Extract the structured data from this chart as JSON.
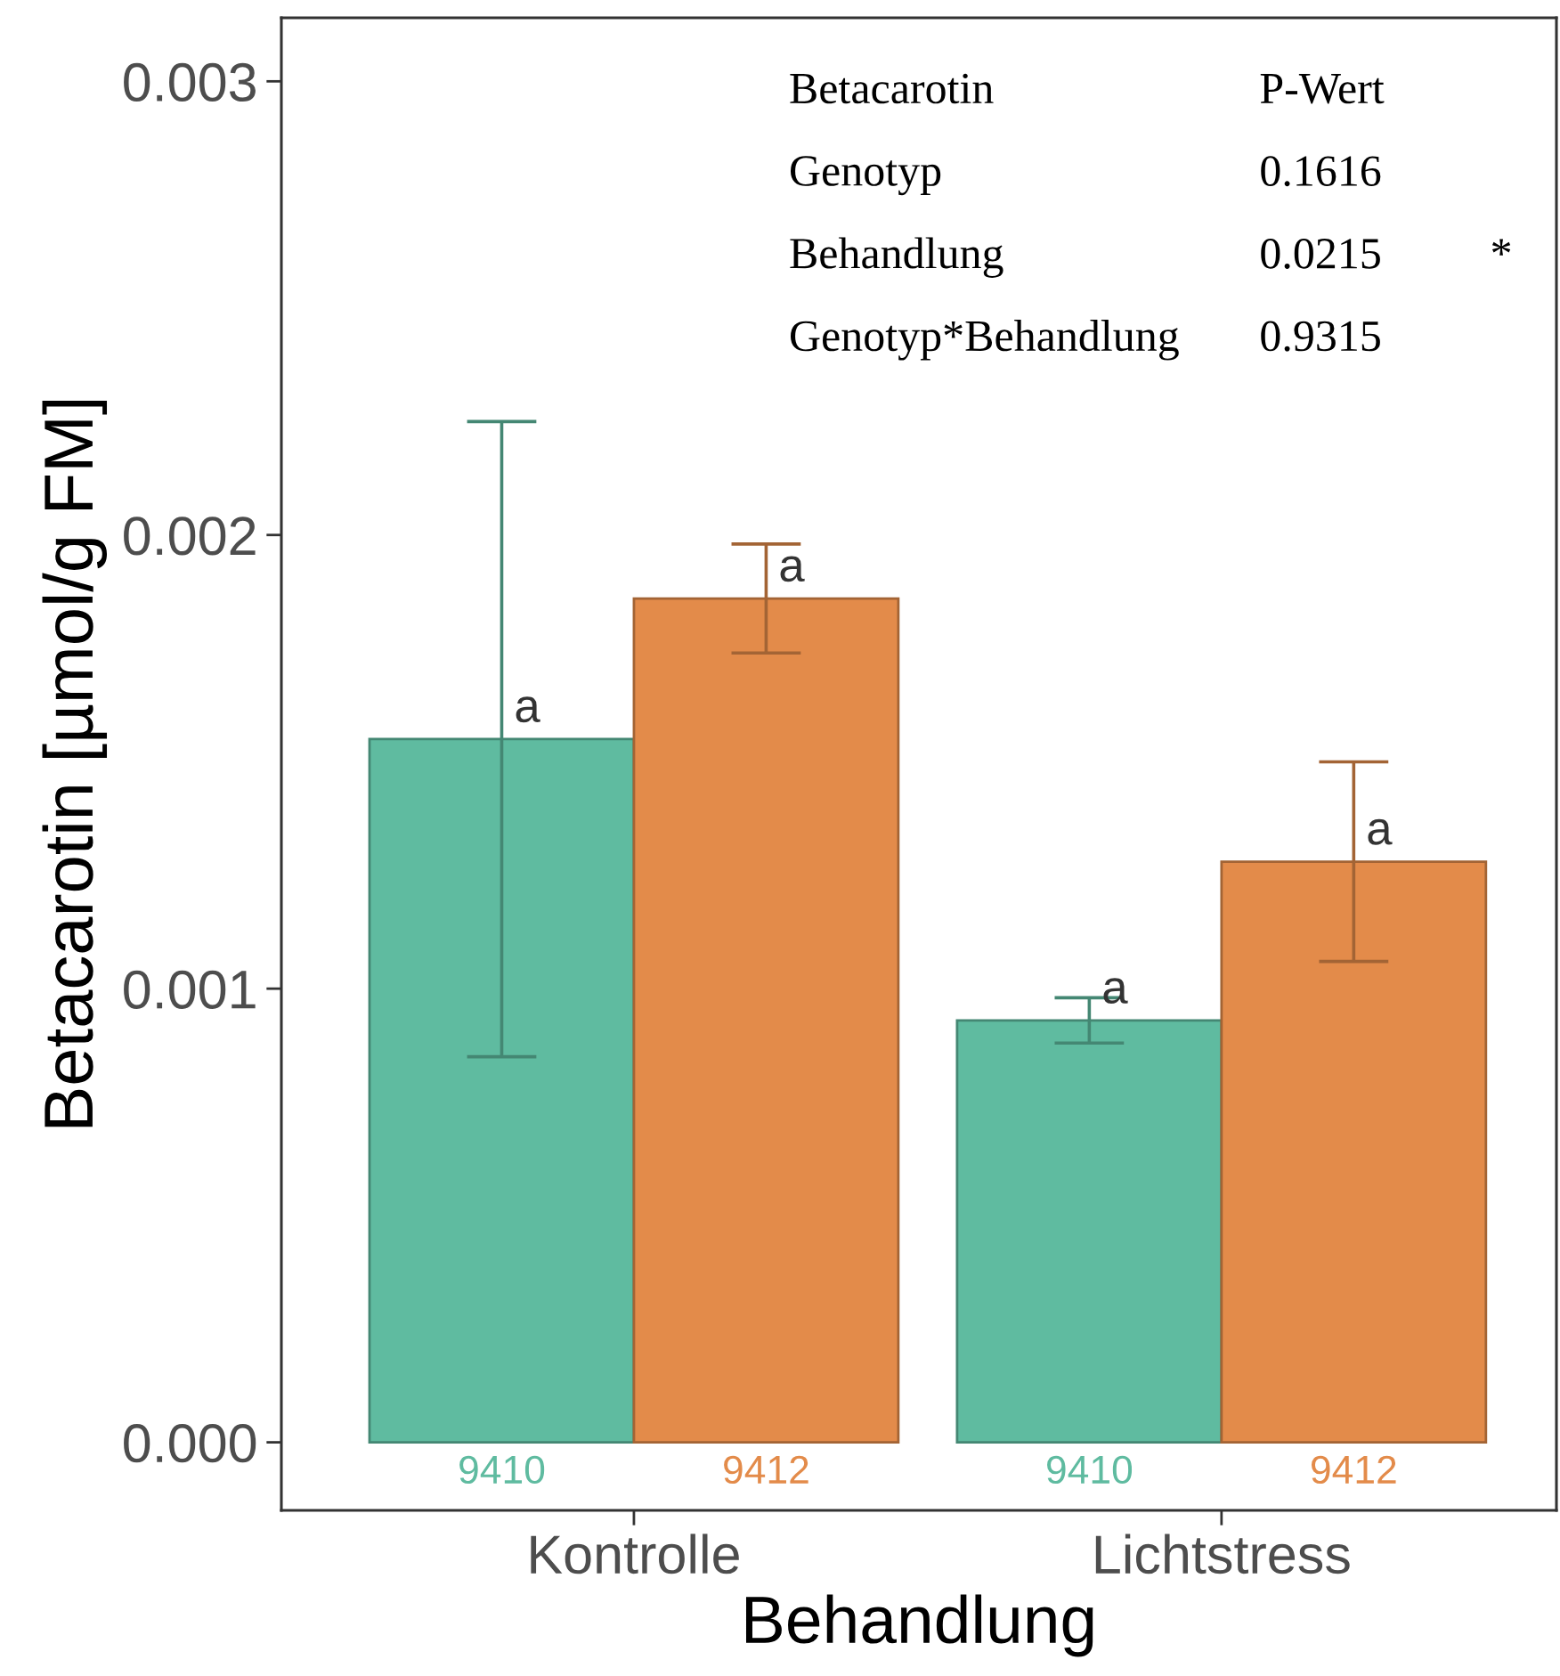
{
  "chart_data": {
    "type": "bar",
    "xlabel": "Behandlung",
    "ylabel": "Betacarotin [µmol/g FM]",
    "categories": [
      "Kontrolle",
      "Lichtstress"
    ],
    "series": [
      {
        "name": "9410",
        "color": "#5fbba0",
        "values": [
          0.00155,
          0.00093
        ],
        "errors": [
          0.0007,
          5e-05
        ],
        "value_labels": [
          "a",
          "a"
        ]
      },
      {
        "name": "9412",
        "color": "#e38b4a",
        "values": [
          0.00186,
          0.00128
        ],
        "errors": [
          0.00012,
          0.00022
        ],
        "value_labels": [
          "a",
          "a"
        ]
      }
    ],
    "ylim": [
      -0.00015,
      0.00314
    ],
    "yticks": [
      {
        "value": 0,
        "label": "0.000"
      },
      0.001,
      0.002,
      0.003
    ],
    "grid": false,
    "legend": false,
    "annotations": [
      "Betacarotin\tP-Wert",
      "Genotyp\t0.1616",
      "Behandlung\t0.0215\t*",
      "Genotyp*Behandlung\t0.9315"
    ]
  }
}
